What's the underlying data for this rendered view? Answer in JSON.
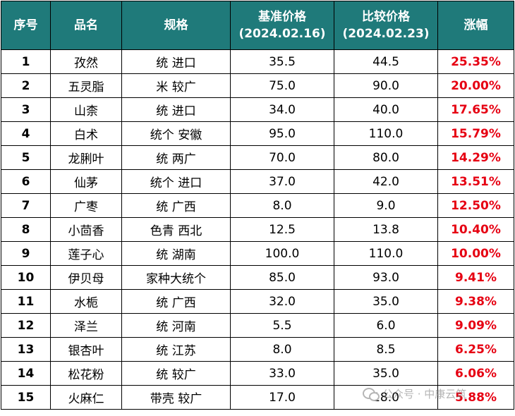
{
  "headers": {
    "no": "序号",
    "name": "品名",
    "spec": "规格",
    "base_line1": "基准价格",
    "base_line2": "(2024.02.16)",
    "compare_line1": "比较价格",
    "compare_line2": "(2024.02.23)",
    "change": "涨幅"
  },
  "rows": [
    {
      "no": "1",
      "name": "孜然",
      "spec": "统 进口",
      "base": "35.5",
      "compare": "44.5",
      "change": "25.35%"
    },
    {
      "no": "2",
      "name": "五灵脂",
      "spec": "米 较广",
      "base": "75.0",
      "compare": "90.0",
      "change": "20.00%"
    },
    {
      "no": "3",
      "name": "山柰",
      "spec": "统 进口",
      "base": "34.0",
      "compare": "40.0",
      "change": "17.65%"
    },
    {
      "no": "4",
      "name": "白术",
      "spec": "统个 安徽",
      "base": "95.0",
      "compare": "110.0",
      "change": "15.79%"
    },
    {
      "no": "5",
      "name": "龙脷叶",
      "spec": "统 两广",
      "base": "70.0",
      "compare": "80.0",
      "change": "14.29%"
    },
    {
      "no": "6",
      "name": "仙茅",
      "spec": "统个 进口",
      "base": "37.0",
      "compare": "42.0",
      "change": "13.51%"
    },
    {
      "no": "7",
      "name": "广枣",
      "spec": "统 广西",
      "base": "8.0",
      "compare": "9.0",
      "change": "12.50%"
    },
    {
      "no": "8",
      "name": "小茴香",
      "spec": "色青 西北",
      "base": "12.5",
      "compare": "13.8",
      "change": "10.40%"
    },
    {
      "no": "9",
      "name": "莲子心",
      "spec": "统 湖南",
      "base": "100.0",
      "compare": "110.0",
      "change": "10.00%"
    },
    {
      "no": "10",
      "name": "伊贝母",
      "spec": "家种大统个",
      "base": "85.0",
      "compare": "93.0",
      "change": "9.41%"
    },
    {
      "no": "11",
      "name": "水栀",
      "spec": "统 广西",
      "base": "32.0",
      "compare": "35.0",
      "change": "9.38%"
    },
    {
      "no": "12",
      "name": "泽兰",
      "spec": "统 河南",
      "base": "5.5",
      "compare": "6.0",
      "change": "9.09%"
    },
    {
      "no": "13",
      "name": "银杏叶",
      "spec": "统 江苏",
      "base": "8.0",
      "compare": "8.5",
      "change": "6.25%"
    },
    {
      "no": "14",
      "name": "松花粉",
      "spec": "统 较广",
      "base": "33.0",
      "compare": "35.0",
      "change": "6.06%"
    },
    {
      "no": "15",
      "name": "火麻仁",
      "spec": "带壳 较广",
      "base": "17.0",
      "compare": "18.0",
      "change": "5.88%"
    }
  ],
  "watermark": {
    "icon": "wechat-icon",
    "text": "公众号 · 中康云筑"
  },
  "colors": {
    "header_bg": "#1f7a7a",
    "header_text": "#ffffff",
    "change_text": "#e60012"
  }
}
